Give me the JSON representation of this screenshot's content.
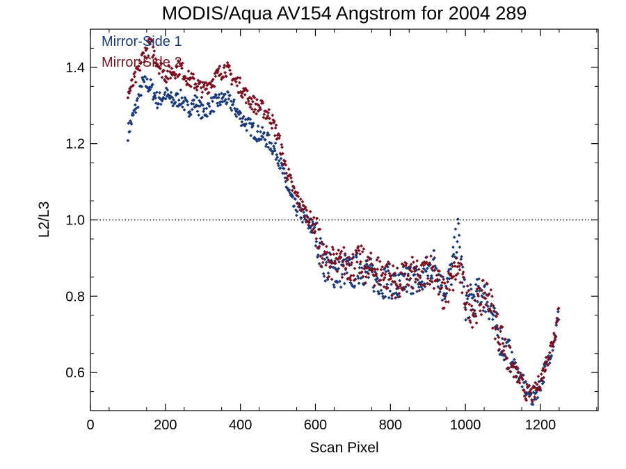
{
  "chart_data": {
    "type": "scatter",
    "title": "MODIS/Aqua AV154 Angstrom for 2004 289",
    "xlabel": "Scan Pixel",
    "ylabel": "L2/L3",
    "xlim": [
      0,
      1354
    ],
    "ylim": [
      0.5,
      1.5
    ],
    "xticks": [
      0,
      200,
      400,
      600,
      800,
      1000,
      1200
    ],
    "xtick_labels": [
      "0",
      "200",
      "400",
      "600",
      "800",
      "1000",
      "1200"
    ],
    "yticks": [
      0.6,
      0.8,
      1.0,
      1.2,
      1.4
    ],
    "ytick_labels": [
      "0.6",
      "0.8",
      "1.0",
      "1.2",
      "1.4"
    ],
    "reference_line": {
      "y": 1.0,
      "style": "dotted"
    },
    "legend": {
      "position": "top-left"
    },
    "series": [
      {
        "name": "Mirror-Side 1",
        "color": "#1a3a7a",
        "marker": "diamond",
        "x": [
          100,
          120,
          140,
          160,
          180,
          200,
          220,
          240,
          260,
          280,
          300,
          320,
          340,
          360,
          380,
          400,
          420,
          440,
          460,
          480,
          500,
          520,
          540,
          560,
          580,
          600,
          620,
          640,
          660,
          680,
          700,
          720,
          740,
          760,
          780,
          800,
          820,
          840,
          860,
          880,
          900,
          920,
          940,
          960,
          980,
          1000,
          1020,
          1040,
          1060,
          1080,
          1100,
          1120,
          1140,
          1160,
          1180,
          1200,
          1220,
          1240,
          1250
        ],
        "values": [
          1.23,
          1.29,
          1.36,
          1.35,
          1.31,
          1.33,
          1.31,
          1.32,
          1.29,
          1.31,
          1.28,
          1.3,
          1.31,
          1.32,
          1.3,
          1.27,
          1.25,
          1.23,
          1.22,
          1.2,
          1.17,
          1.1,
          1.04,
          1.02,
          0.99,
          0.97,
          0.89,
          0.87,
          0.86,
          0.87,
          0.86,
          0.88,
          0.86,
          0.85,
          0.84,
          0.84,
          0.82,
          0.84,
          0.85,
          0.83,
          0.87,
          0.89,
          0.82,
          0.85,
          0.97,
          0.78,
          0.79,
          0.81,
          0.79,
          0.72,
          0.67,
          0.64,
          0.6,
          0.56,
          0.53,
          0.57,
          0.63,
          0.7,
          0.76
        ]
      },
      {
        "name": "Mirror-Side 2",
        "color": "#7a1020",
        "marker": "diamond",
        "x": [
          100,
          120,
          140,
          160,
          180,
          200,
          220,
          240,
          260,
          280,
          300,
          320,
          340,
          360,
          380,
          400,
          420,
          440,
          460,
          480,
          500,
          520,
          540,
          560,
          580,
          600,
          620,
          640,
          660,
          680,
          700,
          720,
          740,
          760,
          780,
          800,
          820,
          840,
          860,
          880,
          900,
          920,
          940,
          960,
          980,
          1000,
          1020,
          1040,
          1060,
          1080,
          1100,
          1120,
          1140,
          1160,
          1180,
          1200,
          1220,
          1240,
          1250
        ],
        "values": [
          1.33,
          1.37,
          1.43,
          1.46,
          1.41,
          1.38,
          1.39,
          1.4,
          1.37,
          1.36,
          1.34,
          1.36,
          1.38,
          1.4,
          1.37,
          1.35,
          1.32,
          1.3,
          1.29,
          1.27,
          1.22,
          1.14,
          1.08,
          1.04,
          1.01,
          0.98,
          0.9,
          0.89,
          0.88,
          0.89,
          0.88,
          0.89,
          0.87,
          0.87,
          0.86,
          0.85,
          0.83,
          0.85,
          0.86,
          0.84,
          0.88,
          0.86,
          0.8,
          0.83,
          0.88,
          0.8,
          0.76,
          0.79,
          0.81,
          0.73,
          0.68,
          0.62,
          0.59,
          0.55,
          0.54,
          0.58,
          0.64,
          0.71,
          0.78
        ]
      }
    ]
  }
}
